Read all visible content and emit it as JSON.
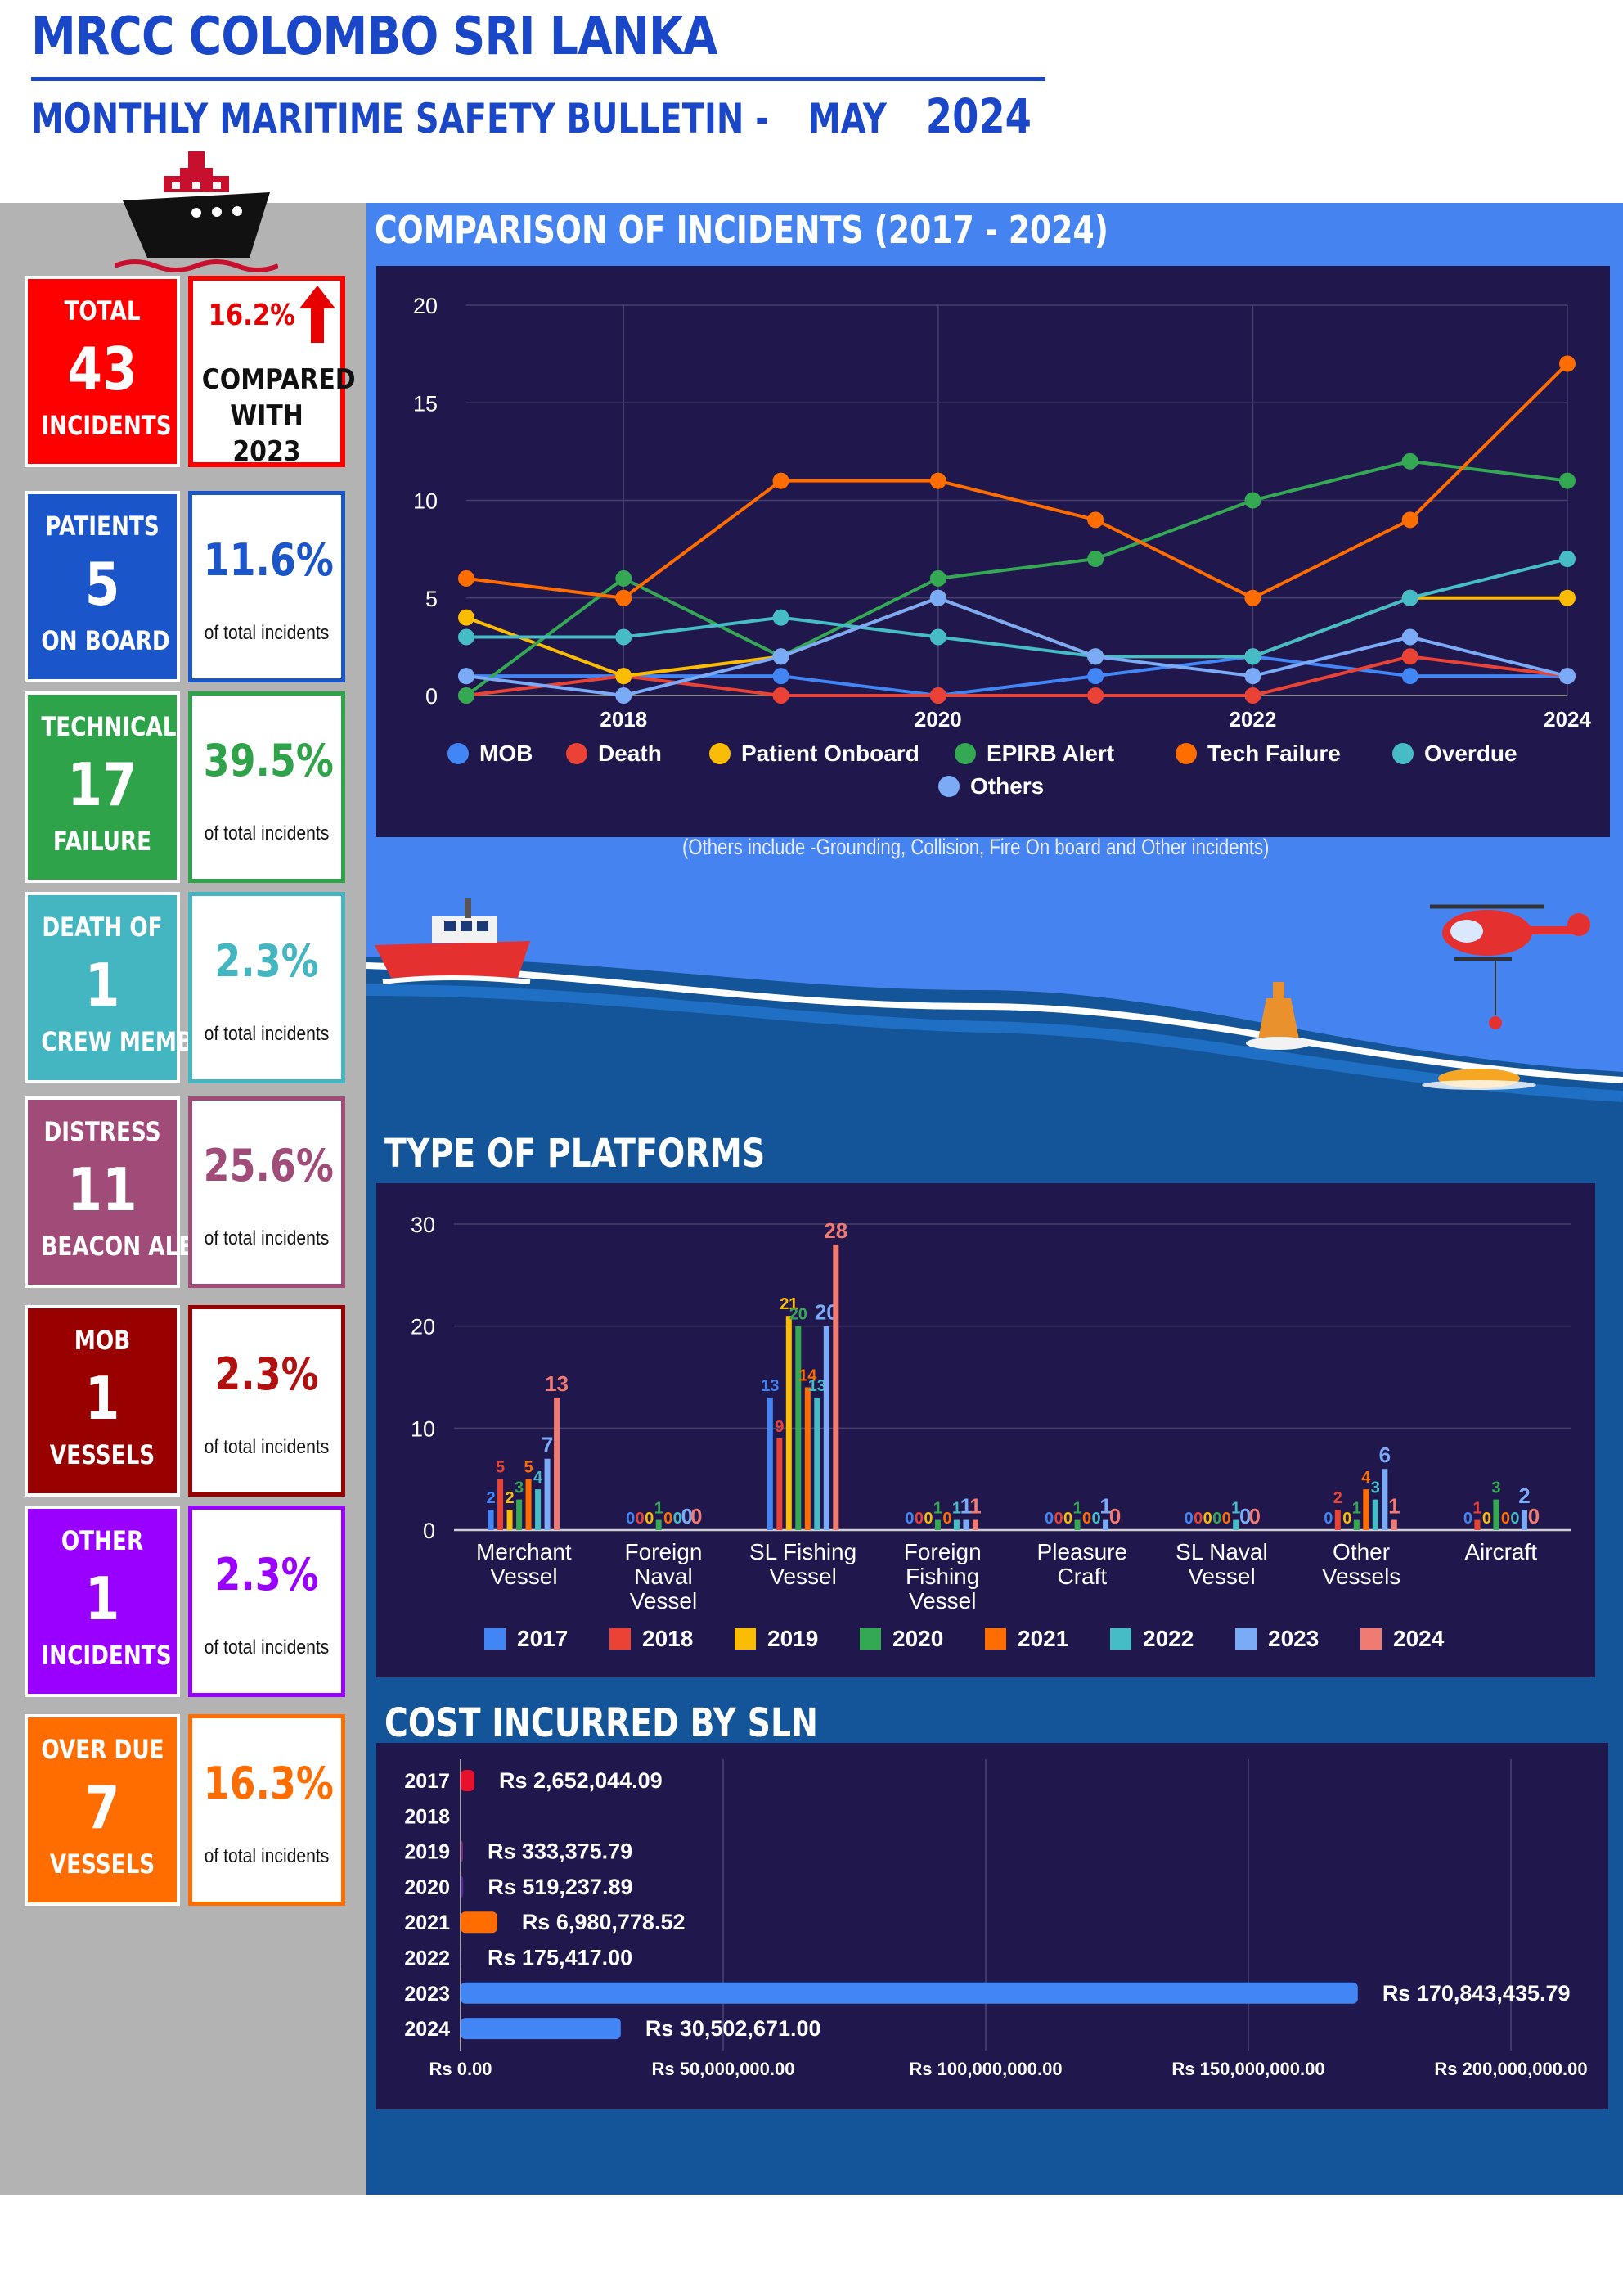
{
  "header": {
    "title": "MRCC COLOMBO SRI LANKA",
    "subtitle": "MONTHLY MARITIME SAFETY BULLETIN -",
    "month": "MAY",
    "year": "2024"
  },
  "stats": [
    {
      "line1": "TOTAL",
      "number": "43",
      "line3": "INCIDENTS",
      "right_pct": "16.2%",
      "right_text": "COMPARED WITH 2023",
      "color": "#ff0000",
      "text_color": "#e60000"
    },
    {
      "line1": "PATIENTS",
      "number": "5",
      "line3": "ON BOARD",
      "right_pct": "11.6%",
      "right_text": "of total incidents",
      "color": "#1a55c9",
      "text_color": "#1a55c9"
    },
    {
      "line1": "TECHNICAL",
      "number": "17",
      "line3": "FAILURE",
      "right_pct": "39.5%",
      "right_text": "of total incidents",
      "color": "#2ea34a",
      "text_color": "#2ea34a"
    },
    {
      "line1": "DEATH OF",
      "number": "1",
      "line3": "CREW MEMBER",
      "right_pct": "2.3%",
      "right_text": "of total incidents",
      "color": "#44b6c2",
      "text_color": "#44b6c2"
    },
    {
      "line1": "DISTRESS",
      "number": "11",
      "line3": "BEACON ALERT",
      "right_pct": "25.6%",
      "right_text": "of total incidents",
      "color": "#a14b78",
      "text_color": "#a14b78"
    },
    {
      "line1": "MOB",
      "number": "1",
      "line3": "VESSELS",
      "right_pct": "2.3%",
      "right_text": "of total incidents",
      "color": "#990000",
      "text_color": "#b01010"
    },
    {
      "line1": "OTHER",
      "number": "1",
      "line3": "INCIDENTS",
      "right_pct": "2.3%",
      "right_text": "of total incidents",
      "color": "#9900ff",
      "text_color": "#9900ff"
    },
    {
      "line1": "OVER DUE",
      "number": "7",
      "line3": "VESSELS",
      "right_pct": "16.3%",
      "right_text": "of total incidents",
      "color": "#ff6d01",
      "text_color": "#ff6d01"
    }
  ],
  "sections": {
    "comparison_title": "COMPARISON OF INCIDENTS (2017 - 2024)",
    "comparison_note": "(Others include -Grounding, Collision, Fire On board and Other incidents)",
    "platforms_title": "TYPE OF PLATFORMS",
    "cost_title": "COST INCURRED BY SLN"
  },
  "chart_data": [
    {
      "type": "line",
      "x": [
        2017,
        2018,
        2019,
        2020,
        2021,
        2022,
        2023,
        2024
      ],
      "x_tick_labels": [
        "2018",
        "2020",
        "2022",
        "2024"
      ],
      "ylim": [
        0,
        20
      ],
      "y_ticks": [
        0,
        5,
        10,
        15,
        20
      ],
      "grid": true,
      "legend_position": "bottom",
      "series": [
        {
          "name": "MOB",
          "color": "#4285f4",
          "values": [
            1,
            1,
            1,
            0,
            1,
            2,
            1,
            1
          ]
        },
        {
          "name": "Death",
          "color": "#ea4335",
          "values": [
            0,
            1,
            0,
            0,
            0,
            0,
            2,
            1
          ]
        },
        {
          "name": "Patient Onboard",
          "color": "#fbbc04",
          "values": [
            4,
            1,
            2,
            5,
            2,
            2,
            5,
            5
          ]
        },
        {
          "name": "EPIRB Alert",
          "color": "#34a853",
          "values": [
            0,
            6,
            2,
            6,
            7,
            10,
            12,
            11
          ]
        },
        {
          "name": "Tech Failure",
          "color": "#ff6d01",
          "values": [
            6,
            5,
            11,
            11,
            9,
            5,
            9,
            17
          ]
        },
        {
          "name": "Overdue",
          "color": "#46bdc6",
          "values": [
            3,
            3,
            4,
            3,
            2,
            2,
            5,
            7
          ]
        },
        {
          "name": "Others",
          "color": "#7baaf7",
          "values": [
            1,
            0,
            2,
            5,
            2,
            1,
            3,
            1
          ]
        }
      ]
    },
    {
      "type": "bar",
      "categories": [
        "Merchant Vessel",
        "Foreign Naval Vessel",
        "SL Fishing Vessel",
        "Foreign Fishing Vessel",
        "Pleasure Craft",
        "SL Naval Vessel",
        "Other Vessels",
        "Aircraft"
      ],
      "ylim": [
        0,
        30
      ],
      "y_ticks": [
        0,
        10,
        20,
        30
      ],
      "legend_position": "bottom",
      "series": [
        {
          "name": "2017",
          "color": "#4285f4",
          "values": [
            2,
            0,
            13,
            0,
            0,
            0,
            0,
            0
          ]
        },
        {
          "name": "2018",
          "color": "#ea4335",
          "values": [
            5,
            0,
            9,
            0,
            0,
            0,
            2,
            1
          ]
        },
        {
          "name": "2019",
          "color": "#fbbc04",
          "values": [
            2,
            0,
            21,
            0,
            0,
            0,
            0,
            0
          ]
        },
        {
          "name": "2020",
          "color": "#34a853",
          "values": [
            3,
            1,
            20,
            1,
            1,
            0,
            1,
            3
          ]
        },
        {
          "name": "2021",
          "color": "#ff6d01",
          "values": [
            5,
            0,
            14,
            0,
            0,
            0,
            4,
            0
          ]
        },
        {
          "name": "2022",
          "color": "#46bdc6",
          "values": [
            4,
            0,
            13,
            1,
            0,
            1,
            3,
            0
          ]
        },
        {
          "name": "2023",
          "color": "#7baaf7",
          "values": [
            7,
            0,
            20,
            1,
            1,
            0,
            6,
            2
          ]
        },
        {
          "name": "2024",
          "color": "#f07b72",
          "values": [
            13,
            0,
            28,
            1,
            0,
            0,
            1,
            0
          ]
        }
      ]
    },
    {
      "type": "bar",
      "orientation": "horizontal",
      "categories": [
        "2017",
        "2018",
        "2019",
        "2020",
        "2021",
        "2022",
        "2023",
        "2024"
      ],
      "values": [
        2652044.09,
        0,
        333375.79,
        519237.89,
        6980778.52,
        175417.0,
        170843435.79,
        30502671.0
      ],
      "value_labels": [
        "Rs 2,652,044.09",
        "",
        "Rs 333,375.79",
        "Rs 519,237.89",
        "Rs 6,980,778.52",
        "Rs 175,417.00",
        "Rs 170,843,435.79",
        "Rs 30,502,671.00"
      ],
      "bar_colors": [
        "#e8112d",
        "#20174d",
        "#6a2e6e",
        "#4a2d8f",
        "#ff6d01",
        "#20174d",
        "#4285f4",
        "#4285f4"
      ],
      "xlim": [
        0,
        200000000
      ],
      "x_tick_labels": [
        "Rs 0.00",
        "Rs 50,000,000.00",
        "Rs 100,000,000.00",
        "Rs 150,000,000.00",
        "Rs 200,000,000.00"
      ]
    }
  ]
}
